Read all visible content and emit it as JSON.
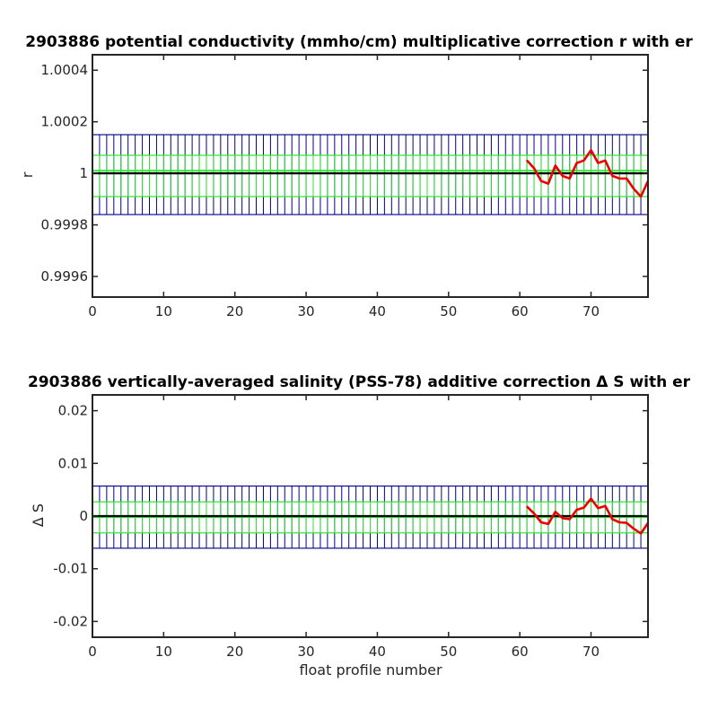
{
  "chart_data": [
    {
      "type": "line",
      "title": "2903886 potential conductivity (mmho/cm) multiplicative correction r with er",
      "xlabel": "",
      "ylabel": "r",
      "xlim": [
        0,
        78
      ],
      "ylim": [
        0.99952,
        1.00046
      ],
      "xticks": [
        0,
        10,
        20,
        30,
        40,
        50,
        60,
        70
      ],
      "xtick_labels": [
        "0",
        "10",
        "20",
        "30",
        "40",
        "50",
        "60",
        "70"
      ],
      "yticks": [
        0.9996,
        0.9998,
        1.0,
        1.0002,
        1.0004
      ],
      "ytick_labels": [
        "0.9996",
        "0.9998",
        "1",
        "1.0002",
        "1.0004"
      ],
      "grid": false,
      "reference_line": 1.0,
      "error_bands": [
        {
          "color": "#00008b",
          "x": [
            0,
            78
          ],
          "lower": 0.99984,
          "upper": 1.00015
        },
        {
          "color": "#32e632",
          "x": [
            0,
            78
          ],
          "lower": 0.99991,
          "upper": 1.00007
        }
      ],
      "green_series": {
        "x": [
          0,
          78
        ],
        "values": [
          1.00001,
          1.00001
        ],
        "color": "#32e632"
      },
      "series": [
        {
          "color": "#ee0000",
          "x": [
            61,
            62,
            63,
            64,
            65,
            66,
            67,
            68,
            69,
            70,
            71,
            72,
            73,
            74,
            75,
            76,
            77,
            78
          ],
          "values": [
            1.00005,
            1.00002,
            0.99997,
            0.99996,
            1.00003,
            0.99999,
            0.99998,
            1.00004,
            1.00005,
            1.00009,
            1.00004,
            1.00005,
            0.99999,
            0.99998,
            0.99998,
            0.99994,
            0.99991,
            0.99997
          ]
        }
      ]
    },
    {
      "type": "line",
      "title": "2903886 vertically-averaged salinity (PSS-78) additive correction Δ S with er",
      "xlabel": "float profile number",
      "ylabel": "Δ S",
      "xlim": [
        0,
        78
      ],
      "ylim": [
        -0.023,
        0.023
      ],
      "xticks": [
        0,
        10,
        20,
        30,
        40,
        50,
        60,
        70
      ],
      "xtick_labels": [
        "0",
        "10",
        "20",
        "30",
        "40",
        "50",
        "60",
        "70"
      ],
      "yticks": [
        -0.02,
        -0.01,
        0,
        0.01,
        0.02
      ],
      "ytick_labels": [
        "-0.02",
        "-0.01",
        "0",
        "0.01",
        "0.02"
      ],
      "grid": false,
      "reference_line": 0,
      "error_bands": [
        {
          "color": "#00008b",
          "x": [
            0,
            78
          ],
          "lower": -0.0061,
          "upper": 0.0057
        },
        {
          "color": "#32e632",
          "x": [
            0,
            78
          ],
          "lower": -0.0032,
          "upper": 0.0027
        }
      ],
      "green_series": {
        "x": [
          0,
          78
        ],
        "values": [
          -0.0002,
          -0.0002
        ],
        "color": "#32e632"
      },
      "series": [
        {
          "color": "#ee0000",
          "x": [
            61,
            62,
            63,
            64,
            65,
            66,
            67,
            68,
            69,
            70,
            71,
            72,
            73,
            74,
            75,
            76,
            77,
            78
          ],
          "values": [
            0.0018,
            0.0005,
            -0.0012,
            -0.0015,
            0.0008,
            -0.0004,
            -0.0006,
            0.0012,
            0.0016,
            0.0033,
            0.0015,
            0.0019,
            -0.0006,
            -0.0012,
            -0.0013,
            -0.0024,
            -0.0033,
            -0.0013
          ]
        }
      ]
    }
  ]
}
